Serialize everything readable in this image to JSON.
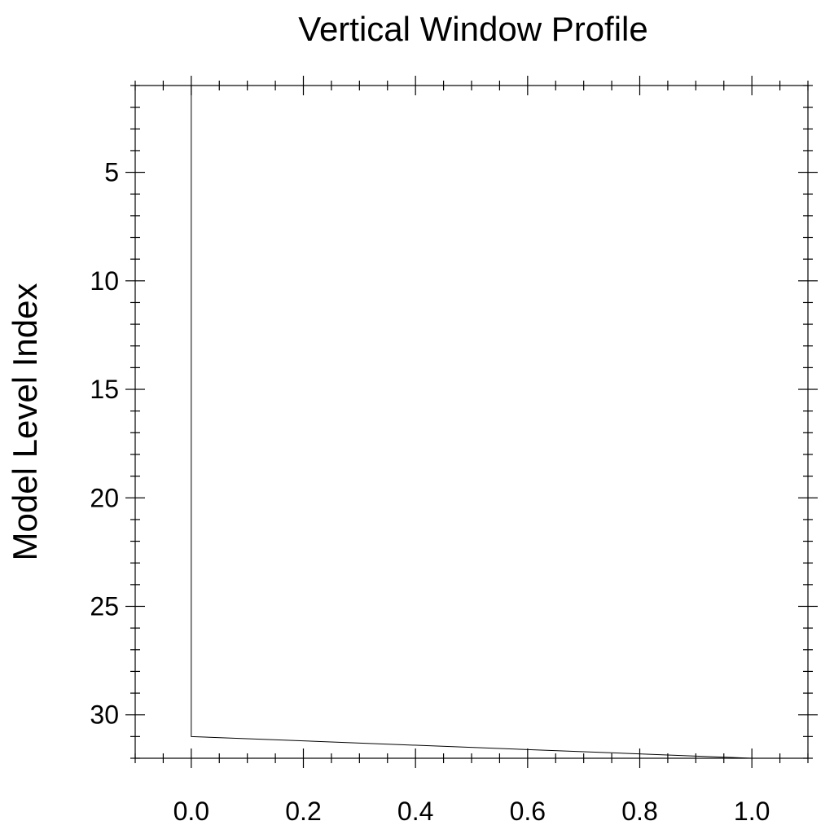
{
  "chart_data": {
    "type": "line",
    "title": "Vertical Window Profile",
    "xlabel": "",
    "ylabel": "Model Level Index",
    "xlim": [
      -0.1,
      1.1
    ],
    "ylim": [
      1,
      32
    ],
    "y_reversed": true,
    "x_ticks": [
      0.0,
      0.2,
      0.4,
      0.6,
      0.8,
      1.0
    ],
    "x_tick_labels": [
      "0.0",
      "0.2",
      "0.4",
      "0.6",
      "0.8",
      "1.0"
    ],
    "y_ticks": [
      5,
      10,
      15,
      20,
      25,
      30
    ],
    "y_tick_labels": [
      "5",
      "10",
      "15",
      "20",
      "25",
      "30"
    ],
    "grid": false,
    "series": [
      {
        "x": [
          0,
          0,
          0,
          0,
          0,
          0,
          0,
          0,
          0,
          0,
          0,
          0,
          0,
          0,
          0,
          0,
          0,
          0,
          0,
          0,
          0,
          0,
          0,
          0,
          0,
          0,
          0,
          0,
          0,
          0,
          0,
          1
        ],
        "y": [
          1,
          2,
          3,
          4,
          5,
          6,
          7,
          8,
          9,
          10,
          11,
          12,
          13,
          14,
          15,
          16,
          17,
          18,
          19,
          20,
          21,
          22,
          23,
          24,
          25,
          26,
          27,
          28,
          29,
          30,
          31,
          32
        ]
      }
    ]
  }
}
